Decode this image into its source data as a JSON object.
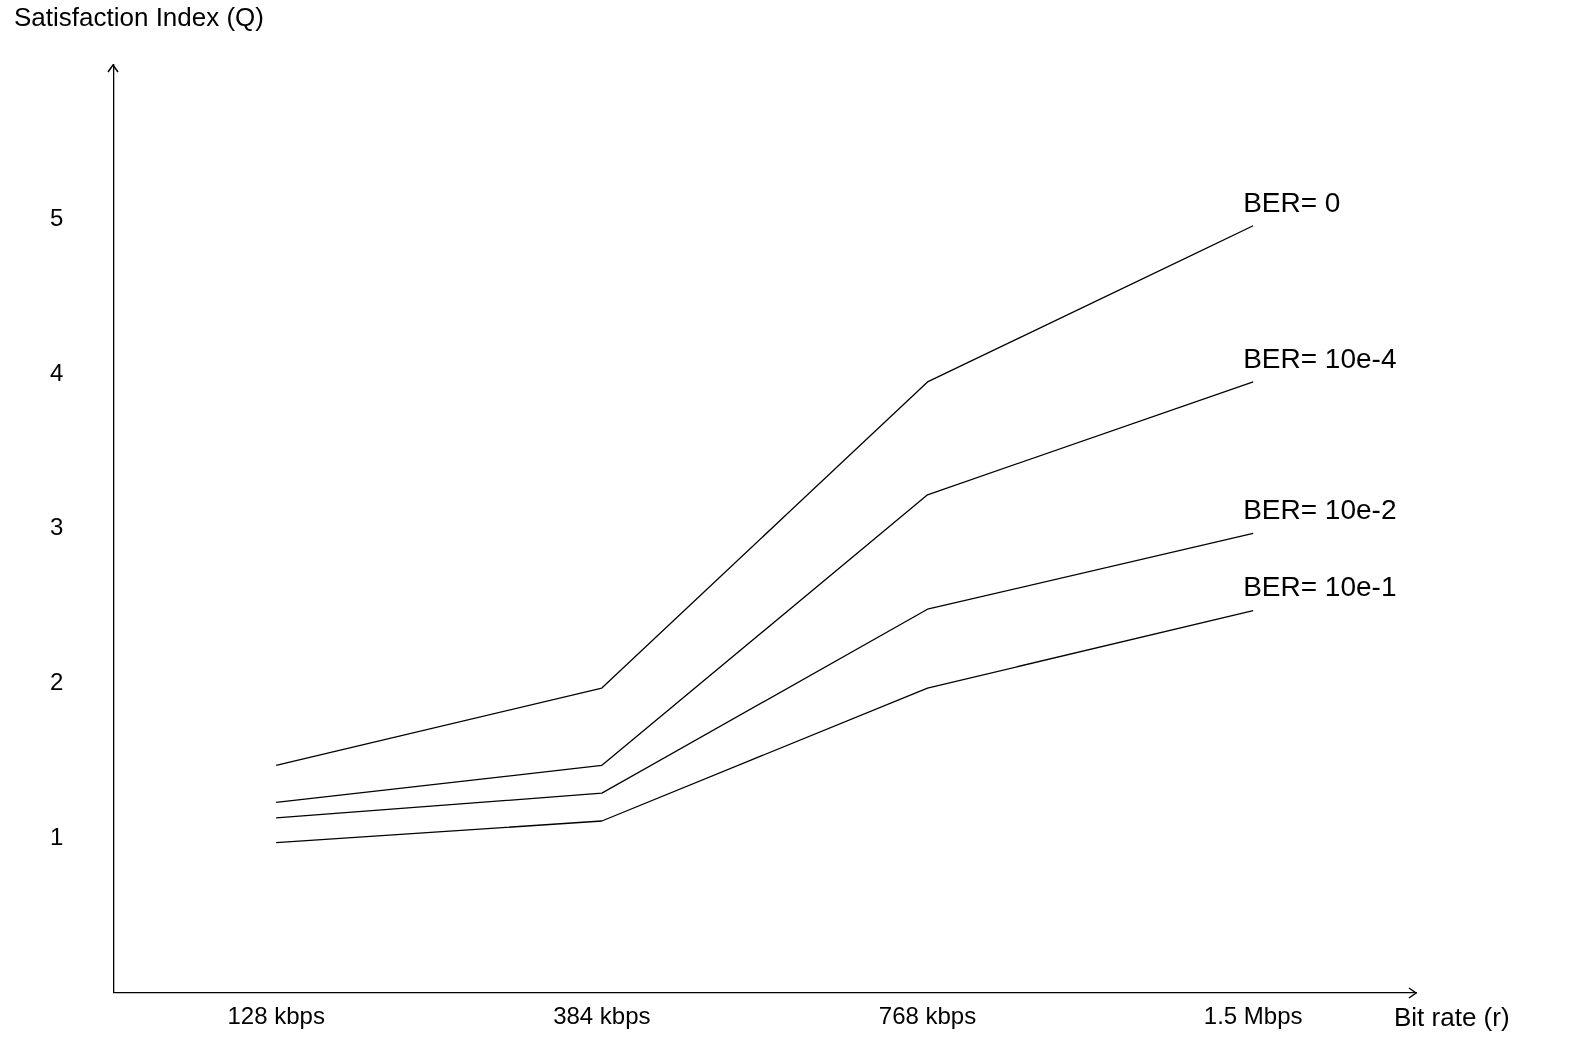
{
  "chart_data": {
    "type": "line",
    "xlabel": "Bit rate (r)",
    "ylabel": "Satisfaction Index (Q)",
    "categories": [
      "128 kbps",
      "384 kbps",
      "768 kbps",
      "1.5 Mbps"
    ],
    "ylim": [
      0,
      6
    ],
    "yticks": [
      1,
      2,
      3,
      4,
      5
    ],
    "series": [
      {
        "name": "BER= 0",
        "color": "#000000",
        "values": [
          1.47,
          1.97,
          3.95,
          4.96
        ]
      },
      {
        "name": "BER= 10e-4",
        "color": "#000000",
        "values": [
          1.23,
          1.47,
          3.22,
          3.95
        ]
      },
      {
        "name": "BER= 10e-2",
        "color": "#000000",
        "values": [
          1.13,
          1.29,
          2.48,
          2.97
        ]
      },
      {
        "name": "BER= 10e-1",
        "color": "#000000",
        "values": [
          0.97,
          1.11,
          1.97,
          2.47
        ]
      }
    ],
    "grid": false,
    "legend": false,
    "marker": "none",
    "line_style": "solid"
  }
}
